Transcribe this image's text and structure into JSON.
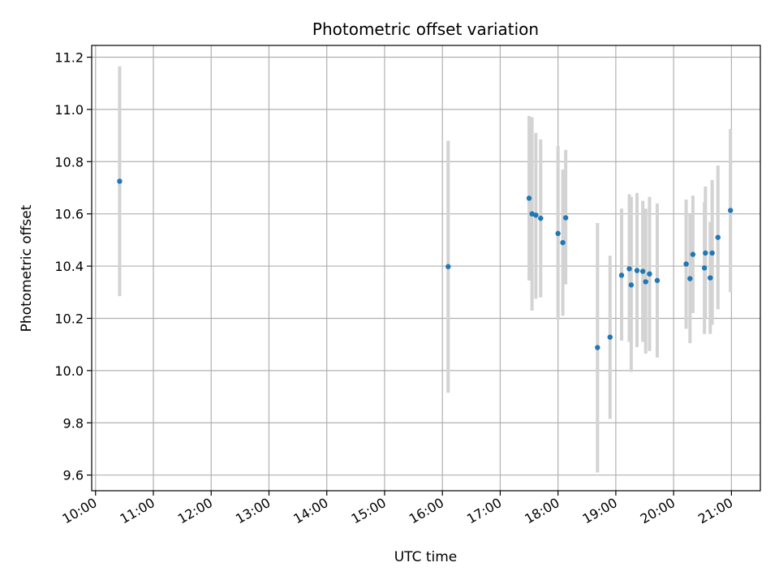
{
  "chart_data": {
    "type": "scatter",
    "title": "Photometric offset variation",
    "xlabel": "UTC time",
    "ylabel": "Photometric offset",
    "x_ticks": [
      "10:00",
      "11:00",
      "12:00",
      "13:00",
      "14:00",
      "15:00",
      "16:00",
      "17:00",
      "18:00",
      "19:00",
      "20:00",
      "21:00"
    ],
    "y_ticks": [
      "9.6",
      "9.8",
      "10.0",
      "10.2",
      "10.4",
      "10.6",
      "10.8",
      "11.0",
      "11.2"
    ],
    "xlim": [
      "09:56",
      "21:30"
    ],
    "ylim": [
      9.54,
      11.245
    ],
    "grid": true,
    "colors": {
      "point": "#1f77b4",
      "errorbar": "#d3d3d3",
      "grid": "#b0b0b0"
    },
    "series": [
      {
        "points": [
          {
            "x": "10:25",
            "y": 10.725,
            "lo": 10.285,
            "hi": 11.165
          },
          {
            "x": "16:06",
            "y": 10.398,
            "lo": 9.915,
            "hi": 10.88
          },
          {
            "x": "17:30",
            "y": 10.66,
            "lo": 10.345,
            "hi": 10.975
          },
          {
            "x": "17:33",
            "y": 10.6,
            "lo": 10.23,
            "hi": 10.97
          },
          {
            "x": "17:37",
            "y": 10.595,
            "lo": 10.275,
            "hi": 10.91
          },
          {
            "x": "17:42",
            "y": 10.583,
            "lo": 10.28,
            "hi": 10.885
          },
          {
            "x": "18:00",
            "y": 10.525,
            "lo": 10.195,
            "hi": 10.86
          },
          {
            "x": "18:05",
            "y": 10.49,
            "lo": 10.21,
            "hi": 10.77
          },
          {
            "x": "18:08",
            "y": 10.585,
            "lo": 10.33,
            "hi": 10.845
          },
          {
            "x": "18:41",
            "y": 10.088,
            "lo": 9.61,
            "hi": 10.565
          },
          {
            "x": "18:54",
            "y": 10.128,
            "lo": 9.815,
            "hi": 10.44
          },
          {
            "x": "19:06",
            "y": 10.365,
            "lo": 10.115,
            "hi": 10.62
          },
          {
            "x": "19:14",
            "y": 10.39,
            "lo": 10.11,
            "hi": 10.675
          },
          {
            "x": "19:16",
            "y": 10.328,
            "lo": 9.995,
            "hi": 10.665
          },
          {
            "x": "19:22",
            "y": 10.383,
            "lo": 10.09,
            "hi": 10.68
          },
          {
            "x": "19:28",
            "y": 10.38,
            "lo": 10.11,
            "hi": 10.65
          },
          {
            "x": "19:31",
            "y": 10.34,
            "lo": 10.065,
            "hi": 10.62
          },
          {
            "x": "19:35",
            "y": 10.37,
            "lo": 10.075,
            "hi": 10.665
          },
          {
            "x": "19:43",
            "y": 10.345,
            "lo": 10.05,
            "hi": 10.64
          },
          {
            "x": "20:13",
            "y": 10.408,
            "lo": 10.16,
            "hi": 10.655
          },
          {
            "x": "20:17",
            "y": 10.352,
            "lo": 10.105,
            "hi": 10.6
          },
          {
            "x": "20:20",
            "y": 10.445,
            "lo": 10.22,
            "hi": 10.67
          },
          {
            "x": "20:32",
            "y": 10.393,
            "lo": 10.14,
            "hi": 10.645
          },
          {
            "x": "20:33",
            "y": 10.45,
            "lo": 10.2,
            "hi": 10.705
          },
          {
            "x": "20:38",
            "y": 10.355,
            "lo": 10.14,
            "hi": 10.57
          },
          {
            "x": "20:40",
            "y": 10.45,
            "lo": 10.175,
            "hi": 10.73
          },
          {
            "x": "20:46",
            "y": 10.51,
            "lo": 10.235,
            "hi": 10.785
          },
          {
            "x": "20:59",
            "y": 10.613,
            "lo": 10.3,
            "hi": 10.925
          }
        ]
      }
    ]
  }
}
